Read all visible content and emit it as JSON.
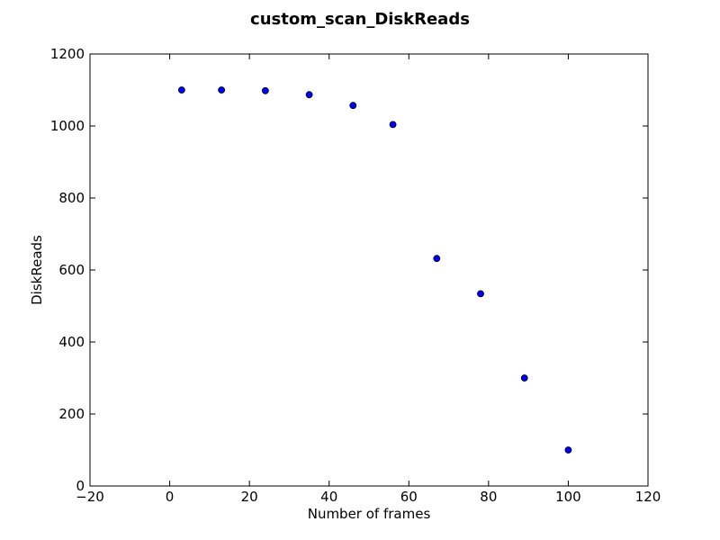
{
  "chart_data": {
    "type": "scatter",
    "title": "custom_scan_DiskReads",
    "xlabel": "Number of frames",
    "ylabel": "DiskReads",
    "xlim": [
      -20,
      120
    ],
    "ylim": [
      0,
      1200
    ],
    "xticks": [
      -20,
      0,
      20,
      40,
      60,
      80,
      100,
      120
    ],
    "yticks": [
      0,
      200,
      400,
      600,
      800,
      1000,
      1200
    ],
    "xtick_labels": [
      "−20",
      "0",
      "20",
      "40",
      "60",
      "80",
      "100",
      "120"
    ],
    "ytick_labels": [
      "0",
      "200",
      "400",
      "600",
      "800",
      "1000",
      "1200"
    ],
    "grid": false,
    "marker_color": "#0000ff",
    "series": [
      {
        "points": [
          {
            "x": 3,
            "y": 1100
          },
          {
            "x": 13,
            "y": 1100
          },
          {
            "x": 24,
            "y": 1098
          },
          {
            "x": 35,
            "y": 1087
          },
          {
            "x": 46,
            "y": 1057
          },
          {
            "x": 56,
            "y": 1004
          },
          {
            "x": 67,
            "y": 632
          },
          {
            "x": 78,
            "y": 534
          },
          {
            "x": 89,
            "y": 300
          },
          {
            "x": 100,
            "y": 100
          }
        ]
      }
    ]
  }
}
